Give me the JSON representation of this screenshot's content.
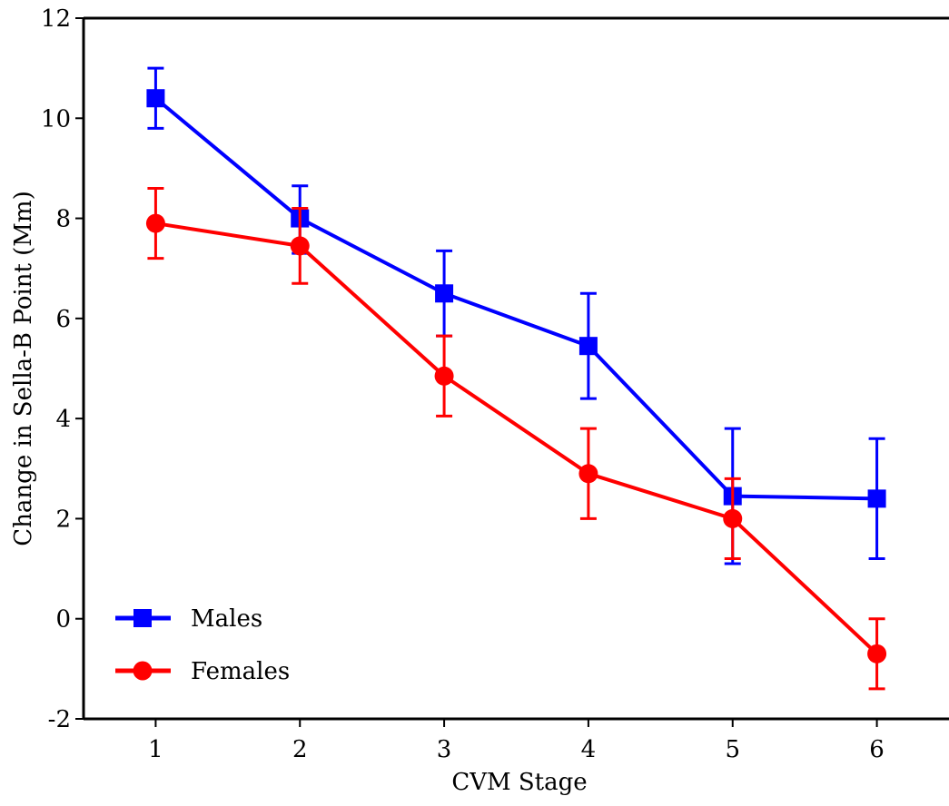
{
  "chart_data": {
    "type": "line",
    "title": "",
    "xlabel": "CVM Stage",
    "ylabel": "Change in Sella-B Point (Mm)",
    "x": [
      1,
      2,
      3,
      4,
      5,
      6
    ],
    "xlim": [
      0.5,
      6.5
    ],
    "ylim": [
      -2,
      12
    ],
    "xticks": [
      "1",
      "2",
      "3",
      "4",
      "5",
      "6"
    ],
    "yticks": [
      "-2",
      "0",
      "2",
      "4",
      "6",
      "8",
      "10",
      "12"
    ],
    "grid": false,
    "legend_position": "bottom-left",
    "series": [
      {
        "name": "Males",
        "color": "#0000ff",
        "marker": "square",
        "values": [
          10.4,
          8.0,
          6.5,
          5.45,
          2.45,
          2.4
        ],
        "error_upper": [
          11.0,
          8.65,
          7.35,
          6.5,
          3.8,
          3.6
        ],
        "error_lower": [
          9.8,
          7.3,
          5.65,
          4.4,
          1.1,
          1.2
        ]
      },
      {
        "name": "Females",
        "color": "#ff0000",
        "marker": "circle",
        "values": [
          7.9,
          7.45,
          4.85,
          2.9,
          2.0,
          -0.7
        ],
        "error_upper": [
          8.6,
          8.2,
          5.65,
          3.8,
          2.8,
          0.0
        ],
        "error_lower": [
          7.2,
          6.7,
          4.05,
          2.0,
          1.2,
          -1.4
        ]
      }
    ]
  }
}
